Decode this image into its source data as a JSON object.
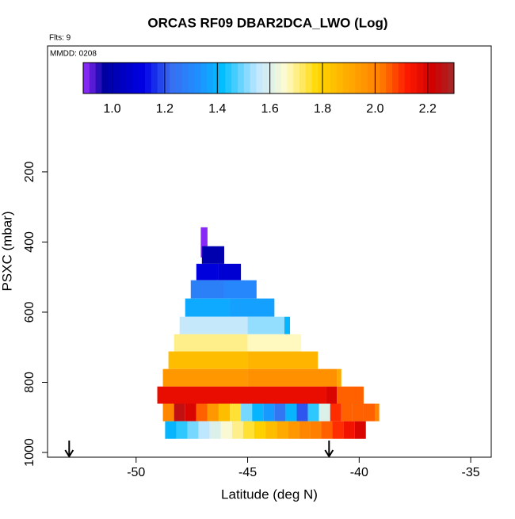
{
  "chart_data": {
    "type": "heatmap",
    "title": "ORCAS RF09 DBAR2DCA_LWO (Log)",
    "flights_label": "Flts: 9",
    "date_label": "MMDD: 0208",
    "xlabel": "Latitude (deg N)",
    "ylabel": "PSXC (mbar)",
    "xlim": [
      -53.97,
      -34.08
    ],
    "xticks": [
      -50,
      -45,
      -40,
      -35
    ],
    "ylim": [
      1013.5,
      -159
    ],
    "yticks": [
      200,
      400,
      600,
      800,
      1000
    ],
    "colorbar": {
      "range": [
        0.89,
        2.3
      ],
      "ticks": [
        {
          "value": 1.0,
          "label": "1.0"
        },
        {
          "value": 1.2,
          "label": "1.2"
        },
        {
          "value": 1.4,
          "label": "1.4"
        },
        {
          "value": 1.6,
          "label": "1.6"
        },
        {
          "value": 1.8,
          "label": "1.8"
        },
        {
          "value": 2.0,
          "label": "2.0"
        },
        {
          "value": 2.2,
          "label": "2.2"
        }
      ],
      "stops": [
        [
          0.89,
          "#9b30ff"
        ],
        [
          0.97,
          "#0000a0"
        ],
        [
          1.12,
          "#0000e6"
        ],
        [
          1.22,
          "#3a6cf0"
        ],
        [
          1.33,
          "#1e90ff"
        ],
        [
          1.42,
          "#00bfff"
        ],
        [
          1.55,
          "#bfe6ff"
        ],
        [
          1.66,
          "#fffbd0"
        ],
        [
          1.78,
          "#ffd700"
        ],
        [
          1.9,
          "#ffaa00"
        ],
        [
          2.02,
          "#ff7f00"
        ],
        [
          2.12,
          "#ff1a00"
        ],
        [
          2.22,
          "#d00000"
        ],
        [
          2.3,
          "#a52a2a"
        ]
      ]
    },
    "rows": [
      {
        "y": [
          358,
          444
        ],
        "bins": [
          -47.1,
          -46.8
        ],
        "values": [
          0.9
        ]
      },
      {
        "y": [
          412,
          462
        ],
        "bins": [
          -47.05,
          -46.05
        ],
        "values": [
          1.0
        ]
      },
      {
        "y": [
          462,
          509
        ],
        "bins": [
          -47.3,
          -46.3,
          -45.3
        ],
        "values": [
          1.1,
          1.08
        ]
      },
      {
        "y": [
          509,
          561
        ],
        "bins": [
          -47.55,
          -46.05,
          -44.6
        ],
        "values": [
          1.28,
          1.3
        ]
      },
      {
        "y": [
          561,
          613
        ],
        "bins": [
          -47.8,
          -45.8,
          -43.8
        ],
        "values": [
          1.38,
          1.36
        ]
      },
      {
        "y": [
          613,
          663
        ],
        "bins": [
          -48.05,
          -45,
          -43.35,
          -43.1
        ],
        "values": [
          1.56,
          1.52,
          1.4
        ]
      },
      {
        "y": [
          663,
          712
        ],
        "bins": [
          -48.3,
          -45,
          -42.6
        ],
        "values": [
          1.7,
          1.67
        ]
      },
      {
        "y": [
          712,
          762
        ],
        "bins": [
          -48.55,
          -45,
          -41.85
        ],
        "values": [
          1.85,
          1.87
        ]
      },
      {
        "y": [
          762,
          812
        ],
        "bins": [
          -48.8,
          -45,
          -41,
          -40.8
        ],
        "values": [
          1.95,
          1.97,
          1.9
        ]
      },
      {
        "y": [
          812,
          861
        ],
        "bins": [
          -49.05,
          -41.5,
          -41,
          -39.8
        ],
        "values": [
          2.17,
          2.2,
          2.05
        ]
      },
      {
        "y": [
          861,
          911
        ],
        "bins": [
          -48.8,
          -48.3,
          -47.8,
          -47.3,
          -46.8,
          -46.3,
          -45.8,
          -45.3,
          -44.8,
          -44.3,
          -43.8,
          -43.3,
          -42.8,
          -42.3,
          -41.8,
          -41.3,
          -40.8,
          -40.3,
          -39.8,
          -39.3,
          -39.1
        ],
        "values": [
          2.0,
          2.25,
          2.2,
          2.05,
          1.95,
          1.85,
          1.75,
          1.5,
          1.4,
          1.35,
          1.25,
          1.4,
          1.2,
          1.45,
          1.6,
          2.1,
          2.05,
          2.05,
          2.05,
          2.0
        ]
      },
      {
        "y": [
          911,
          961
        ],
        "bins": [
          -48.7,
          -48.2,
          -47.7,
          -47.2,
          -46.7,
          -46.2,
          -45.7,
          -45.2,
          -44.7,
          -44.2,
          -43.7,
          -43.2,
          -42.7,
          -42.2,
          -41.7,
          -41.2,
          -40.7,
          -40.2,
          -39.7
        ],
        "values": [
          1.4,
          1.45,
          1.5,
          1.55,
          1.6,
          1.65,
          1.7,
          1.75,
          1.8,
          1.85,
          1.9,
          1.95,
          2.0,
          2.02,
          2.05,
          2.1,
          2.15,
          2.2
        ]
      }
    ],
    "arrows": [
      -53,
      -41.35
    ]
  }
}
